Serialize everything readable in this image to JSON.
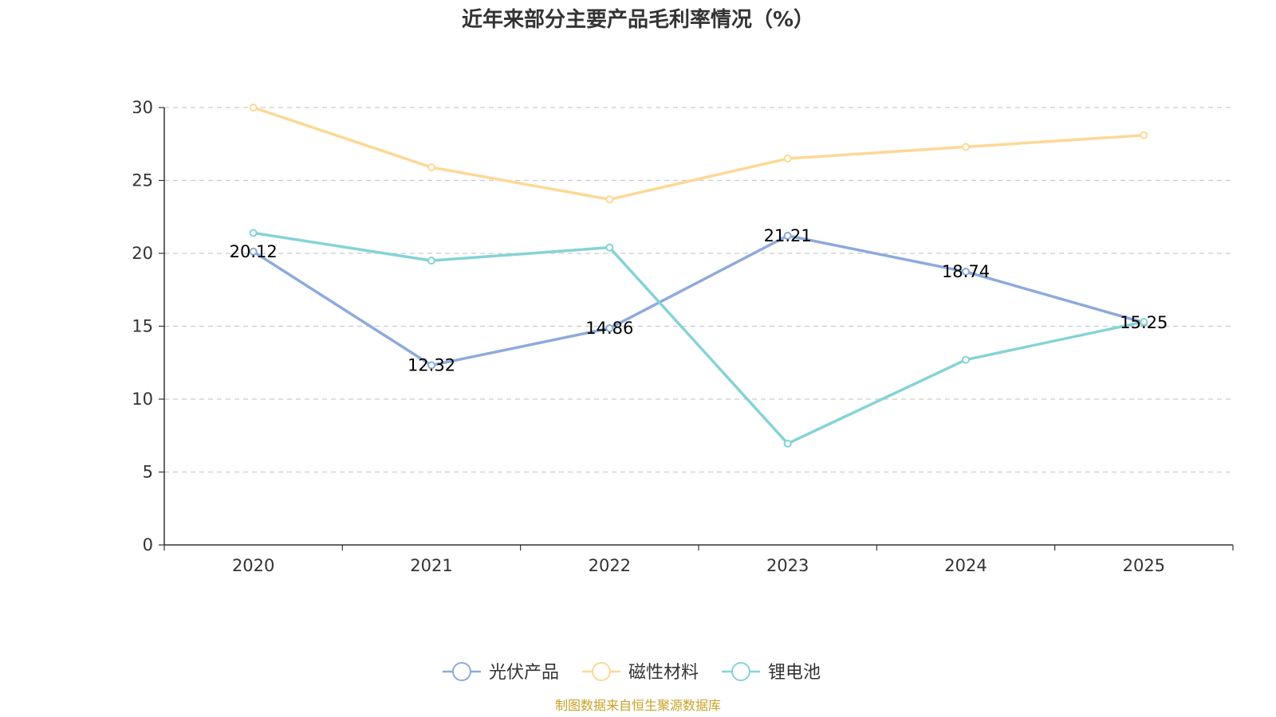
{
  "chart_data": {
    "type": "line",
    "title": "近年来部分主要产品毛利率情况（%）",
    "categories": [
      "2020",
      "2021",
      "2022",
      "2023",
      "2024",
      "2025"
    ],
    "ylim": [
      0,
      30
    ],
    "yticks": [
      0,
      5,
      10,
      15,
      20,
      25,
      30
    ],
    "grid": true,
    "legend_position": "bottom-center",
    "series": [
      {
        "name": "光伏产品",
        "color": "#8eaadb",
        "values": [
          20.12,
          12.32,
          14.86,
          21.21,
          18.74,
          15.25
        ],
        "labels_shown": true
      },
      {
        "name": "磁性材料",
        "color": "#fdd895",
        "values": [
          30.0,
          25.9,
          23.7,
          26.5,
          27.3,
          28.1
        ],
        "labels_shown": false
      },
      {
        "name": "锂电池",
        "color": "#85d3d5",
        "values": [
          21.4,
          19.5,
          20.4,
          6.95,
          12.7,
          15.3
        ],
        "labels_shown": false
      }
    ]
  },
  "source_note": "制图数据来自恒生聚源数据库"
}
